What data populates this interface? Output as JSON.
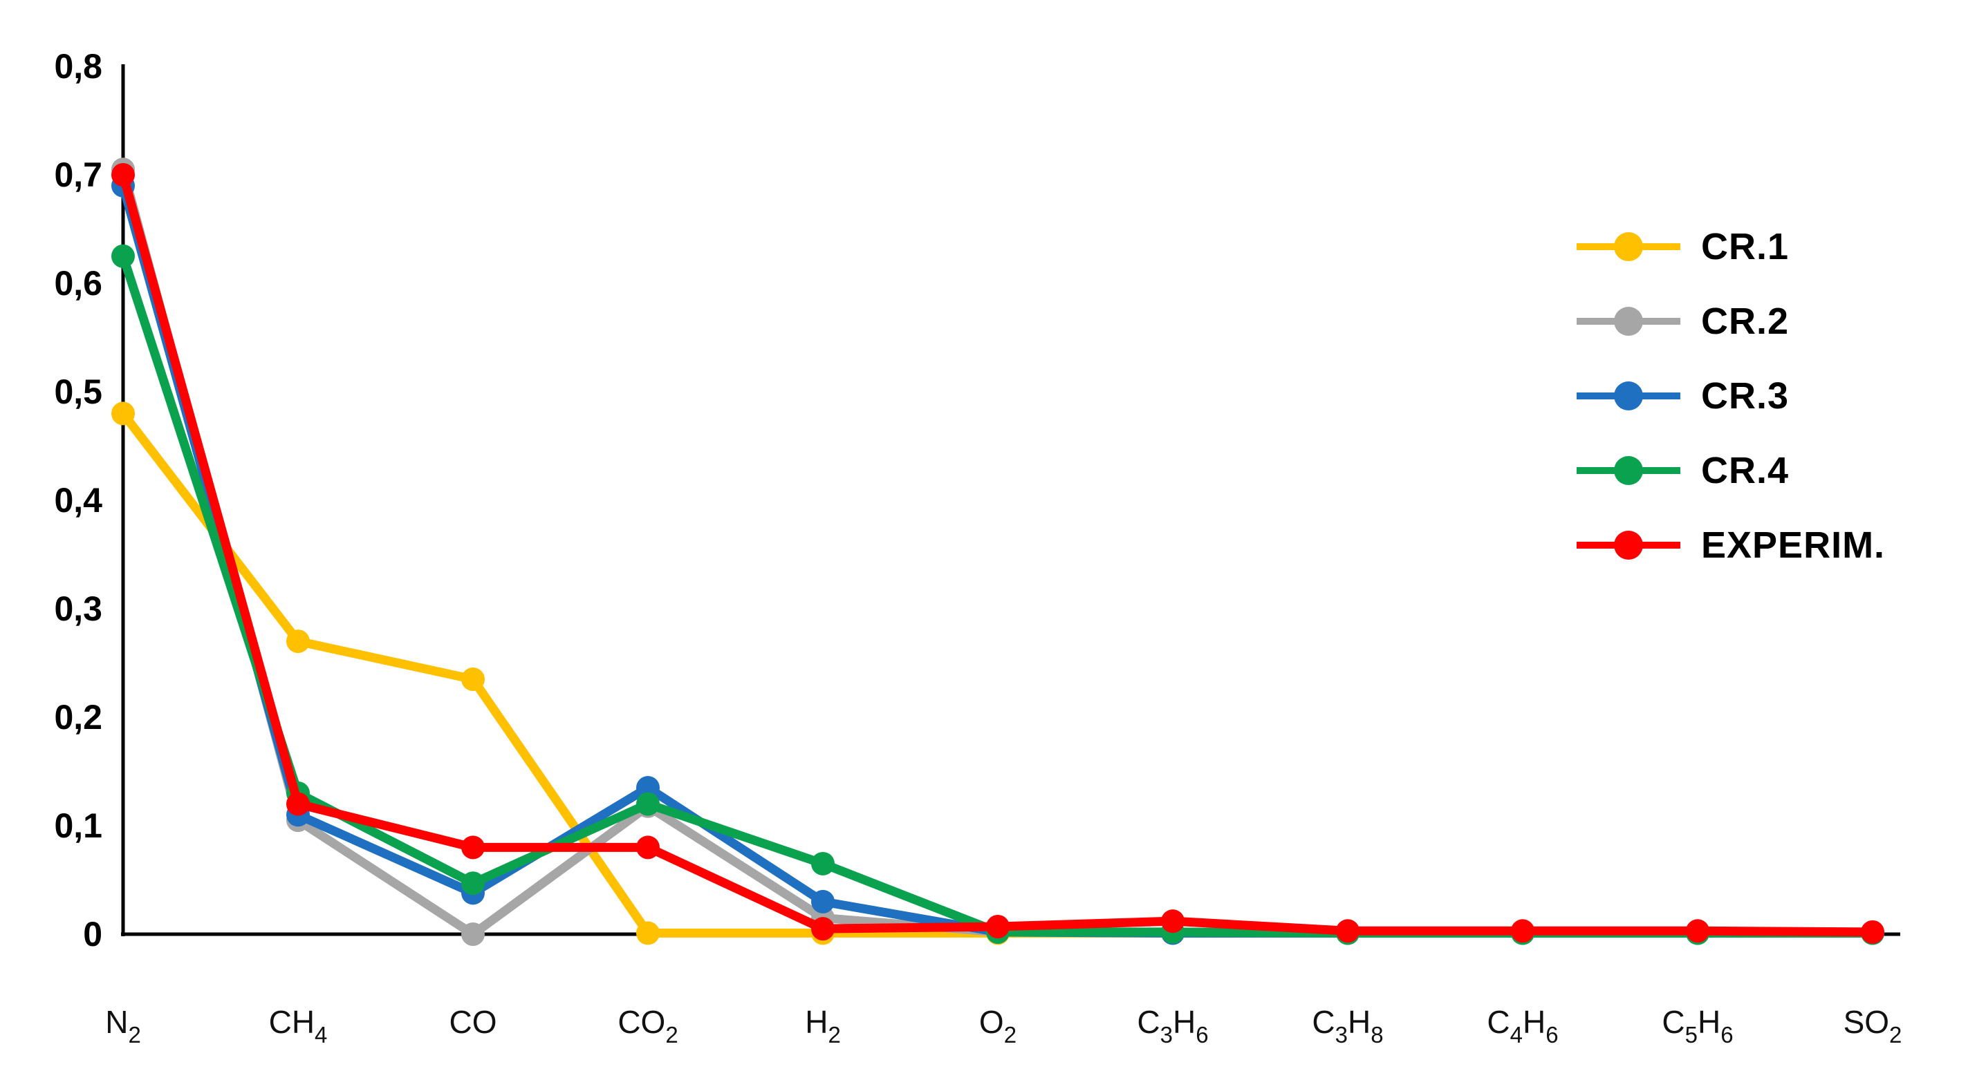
{
  "chart_data": {
    "type": "line",
    "title": "",
    "xlabel": "",
    "ylabel": "",
    "grid": false,
    "legend_position": "right",
    "ylim": [
      0,
      0.8
    ],
    "ytick_step": 0.1,
    "ytick_labels": [
      "0",
      "0,1",
      "0,2",
      "0,3",
      "0,4",
      "0,5",
      "0,6",
      "0,7",
      "0,8"
    ],
    "categories": [
      "N2",
      "CH4",
      "CO",
      "CO2",
      "H2",
      "O2",
      "C3H6",
      "C3H8",
      "C4H6",
      "C5H6",
      "SO2"
    ],
    "series": [
      {
        "name": "CR.1",
        "color": "#FFC000",
        "values": [
          0.48,
          0.27,
          0.235,
          0.001,
          0.001,
          0.001,
          0.001,
          0.001,
          0.001,
          0.001,
          0.001
        ]
      },
      {
        "name": "CR.2",
        "color": "#A6A6A6",
        "values": [
          0.705,
          0.105,
          0.0,
          0.118,
          0.015,
          0.002,
          0.001,
          0.001,
          0.001,
          0.001,
          0.001
        ]
      },
      {
        "name": "CR.3",
        "color": "#1F70C1",
        "values": [
          0.69,
          0.11,
          0.038,
          0.135,
          0.03,
          0.002,
          0.001,
          0.001,
          0.001,
          0.001,
          0.001
        ]
      },
      {
        "name": "CR.4",
        "color": "#0AA24E",
        "values": [
          0.625,
          0.13,
          0.047,
          0.12,
          0.065,
          0.002,
          0.002,
          0.001,
          0.001,
          0.001,
          0.001
        ]
      },
      {
        "name": "EXPERIM.",
        "color": "#FF0000",
        "values": [
          0.7,
          0.12,
          0.08,
          0.08,
          0.005,
          0.007,
          0.012,
          0.003,
          0.003,
          0.003,
          0.002
        ]
      }
    ]
  }
}
